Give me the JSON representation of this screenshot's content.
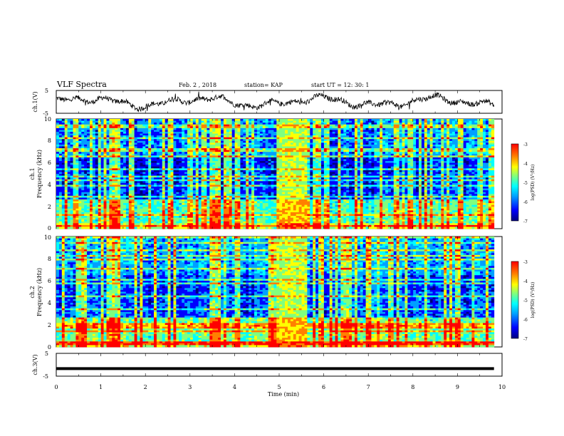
{
  "header": {
    "title": "VLF Spectra",
    "date": "Feb. 2  , 2018",
    "station": "station= KAP",
    "start": "start  UT =   12: 30: 1"
  },
  "chart_data": [
    {
      "type": "line",
      "panel": "ch1-waveform",
      "ylabel": "ch.1(V)",
      "ylim": [
        -5,
        5
      ],
      "yticks": [
        "5",
        "-5"
      ],
      "xlim": [
        0,
        10
      ],
      "series_color": "#000000"
    },
    {
      "type": "heatmap",
      "panel": "ch1-spectrogram",
      "ylabel_line1": "ch.1",
      "ylabel_line2": "Frequency  (kHz)",
      "ylim": [
        0,
        10
      ],
      "yticks": [
        "0",
        "2",
        "4",
        "6",
        "8",
        "10"
      ],
      "xlim": [
        0,
        10
      ],
      "colorbar": {
        "label": "log(PSD) (V²/Hz)",
        "ticks": [
          "-3",
          "-4",
          "-5",
          "-6",
          "-7"
        ],
        "range": [
          -7,
          -3
        ]
      },
      "colormap": [
        "#00007f",
        "#0000ff",
        "#00a0ff",
        "#00ffff",
        "#7fff7f",
        "#ffff00",
        "#ff8000",
        "#ff0000"
      ]
    },
    {
      "type": "heatmap",
      "panel": "ch2-spectrogram",
      "ylabel_line1": "ch.2",
      "ylabel_line2": "Frequency  (kHz)",
      "ylim": [
        0,
        10
      ],
      "yticks": [
        "0",
        "2",
        "4",
        "6",
        "8",
        "10"
      ],
      "xlim": [
        0,
        10
      ],
      "colorbar": {
        "label": "log(PSD) (V²/Hz)",
        "ticks": [
          "-3",
          "-4",
          "-5",
          "-6",
          "-7"
        ],
        "range": [
          -7,
          -3
        ]
      }
    },
    {
      "type": "line",
      "panel": "ch3-waveform",
      "ylabel": "ch.3(V)",
      "ylim": [
        -5,
        5
      ],
      "yticks": [
        "5",
        "-5"
      ],
      "constant_value": -1.7,
      "xlim": [
        0,
        10
      ],
      "xlabel": "Time  (min)",
      "xticks": [
        "0",
        "1",
        "2",
        "3",
        "4",
        "5",
        "6",
        "7",
        "8",
        "9",
        "10"
      ]
    }
  ]
}
